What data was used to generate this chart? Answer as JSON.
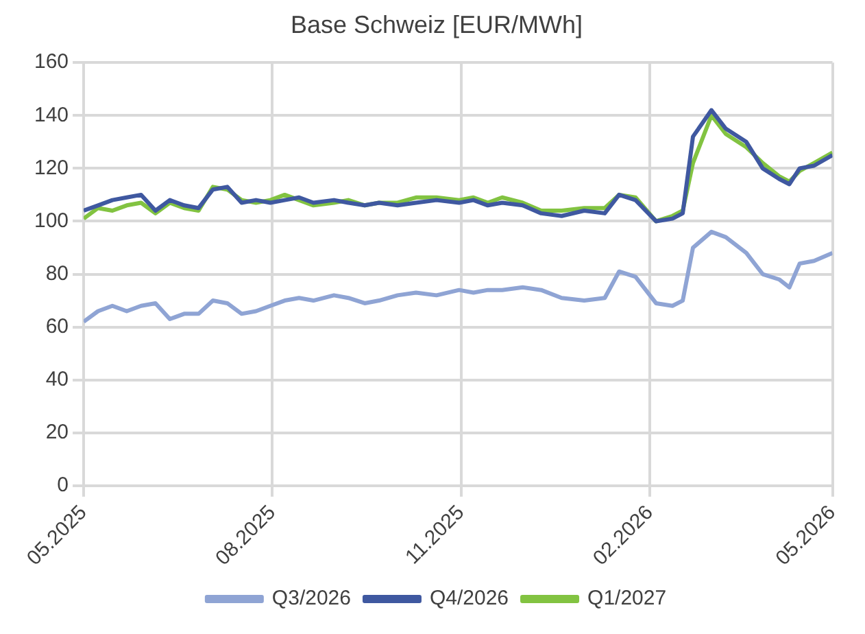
{
  "chart_data": {
    "type": "line",
    "title": "Base Schweiz [EUR/MWh]",
    "x": [
      "2025-05-01",
      "2025-05-08",
      "2025-05-15",
      "2025-05-22",
      "2025-05-29",
      "2025-06-05",
      "2025-06-12",
      "2025-06-19",
      "2025-06-26",
      "2025-07-03",
      "2025-07-10",
      "2025-07-17",
      "2025-07-24",
      "2025-07-31",
      "2025-08-07",
      "2025-08-14",
      "2025-08-21",
      "2025-08-31",
      "2025-09-07",
      "2025-09-15",
      "2025-09-22",
      "2025-10-01",
      "2025-10-10",
      "2025-10-20",
      "2025-10-31",
      "2025-11-07",
      "2025-11-14",
      "2025-11-21",
      "2025-12-01",
      "2025-12-10",
      "2025-12-20",
      "2025-12-31",
      "2026-01-10",
      "2026-01-17",
      "2026-01-25",
      "2026-02-04",
      "2026-02-12",
      "2026-02-17",
      "2026-02-22",
      "2026-03-03",
      "2026-03-10",
      "2026-03-20",
      "2026-03-28",
      "2026-04-05",
      "2026-04-10",
      "2026-04-15",
      "2026-04-22",
      "2026-05-01"
    ],
    "series": [
      {
        "name": "Q3/2026",
        "color": "#8fa4d4",
        "values": [
          62,
          66,
          68,
          66,
          68,
          69,
          63,
          65,
          65,
          70,
          69,
          65,
          66,
          68,
          70,
          71,
          70,
          72,
          71,
          69,
          70,
          72,
          73,
          72,
          74,
          73,
          74,
          74,
          75,
          74,
          71,
          70,
          71,
          81,
          79,
          69,
          68,
          70,
          90,
          96,
          94,
          88,
          80,
          78,
          75,
          84,
          85,
          88
        ]
      },
      {
        "name": "Q4/2026",
        "color": "#3f58a0",
        "values": [
          104,
          106,
          108,
          109,
          110,
          104,
          108,
          106,
          105,
          112,
          113,
          107,
          108,
          107,
          108,
          109,
          107,
          108,
          107,
          106,
          107,
          106,
          107,
          108,
          107,
          108,
          106,
          107,
          106,
          103,
          102,
          104,
          103,
          110,
          108,
          100,
          101,
          103,
          132,
          142,
          135,
          130,
          120,
          116,
          114,
          120,
          121,
          125
        ]
      },
      {
        "name": "Q1/2027",
        "color": "#82c341",
        "values": [
          101,
          105,
          104,
          106,
          107,
          103,
          107,
          105,
          104,
          113,
          112,
          108,
          107,
          108,
          110,
          108,
          106,
          107,
          108,
          106,
          107,
          107,
          109,
          109,
          108,
          109,
          107,
          109,
          107,
          104,
          104,
          105,
          105,
          110,
          109,
          100,
          102,
          104,
          122,
          140,
          133,
          128,
          122,
          117,
          115,
          119,
          122,
          126
        ]
      }
    ],
    "ylim": [
      0,
      160
    ],
    "yticks": [
      0,
      20,
      40,
      60,
      80,
      100,
      120,
      140,
      160
    ],
    "xlim": [
      "2025-05-01",
      "2026-05-01"
    ],
    "xticks": [
      {
        "value": "2025-05-01",
        "label": "05.2025"
      },
      {
        "value": "2025-08-01",
        "label": "08.2025"
      },
      {
        "value": "2025-11-01",
        "label": "11.2025"
      },
      {
        "value": "2026-02-01",
        "label": "02.2026"
      },
      {
        "value": "2026-05-01",
        "label": "05.2026"
      }
    ],
    "grid": true,
    "legend": "bottom",
    "marker": "none",
    "line_style": "solid"
  }
}
